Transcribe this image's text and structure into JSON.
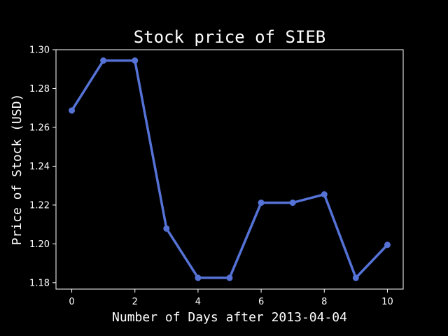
{
  "chart_data": {
    "type": "line",
    "title": "Stock price of SIEB",
    "xlabel": "Number of Days after 2013-04-04",
    "ylabel": "Price of Stock (USD)",
    "x": [
      0,
      1,
      2,
      3,
      4,
      5,
      6,
      7,
      8,
      9,
      10
    ],
    "series": [
      {
        "values": [
          1.2687,
          1.2944,
          1.2944,
          1.2079,
          1.1825,
          1.1825,
          1.2212,
          1.2212,
          1.2255,
          1.1825,
          1.1995
        ]
      }
    ],
    "xlim": [
      -0.5,
      10.5
    ],
    "ylim": [
      1.1767,
      1.3
    ],
    "xticks": [
      0,
      2,
      4,
      6,
      8,
      10
    ],
    "yticks": [
      "1.18",
      "1.20",
      "1.22",
      "1.24",
      "1.26",
      "1.28",
      "1.30"
    ],
    "grid": false,
    "colors": {
      "background": "#000000",
      "line": "#5572d6",
      "axes": "#ffffff"
    }
  }
}
